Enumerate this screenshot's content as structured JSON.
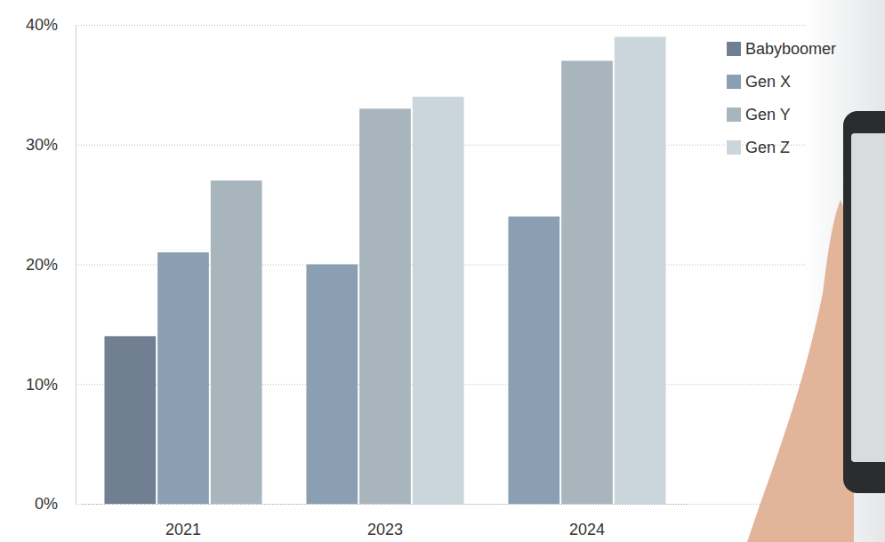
{
  "chart_data": {
    "type": "bar",
    "categories": [
      "2021",
      "2023",
      "2024"
    ],
    "series": [
      {
        "name": "Babyboomer",
        "color": "#717f93",
        "values": [
          14,
          null,
          null
        ]
      },
      {
        "name": "Gen X",
        "color": "#8a9fb2",
        "values": [
          21,
          20,
          24
        ]
      },
      {
        "name": "Gen Y",
        "color": "#a9b5bd",
        "values": [
          27,
          33,
          37
        ]
      },
      {
        "name": "Gen Z",
        "color": "#cbd5dc",
        "values": [
          null,
          34,
          39
        ]
      }
    ],
    "ylim": [
      0,
      40
    ],
    "yticks": [
      {
        "value": 0,
        "label": "0%"
      },
      {
        "value": 10,
        "label": "10%"
      },
      {
        "value": 20,
        "label": "20%"
      },
      {
        "value": 30,
        "label": "30%"
      },
      {
        "value": 40,
        "label": "40%"
      }
    ],
    "grid": true,
    "legend": "top-right"
  }
}
